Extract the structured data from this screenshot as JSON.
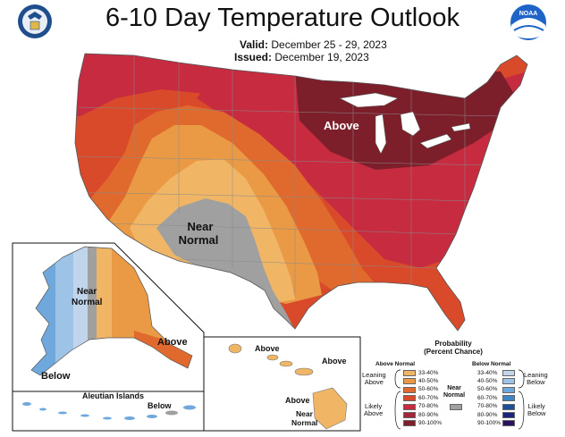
{
  "header": {
    "title": "6-10 Day Temperature Outlook",
    "valid_label": "Valid:",
    "valid_value": "December 25 - 29, 2023",
    "issued_label": "Issued:",
    "issued_value": "December 19, 2023"
  },
  "logos": {
    "left": "doc-seal-icon",
    "right_text": "NOAA"
  },
  "map_labels": {
    "conus_above": "Above",
    "conus_near": "Near",
    "conus_normal": "Normal",
    "alaska_near": "Near",
    "alaska_normal": "Normal",
    "alaska_above": "Above",
    "alaska_below": "Below",
    "aleutian_title": "Aleutian Islands",
    "aleutian_below": "Below",
    "hawaii_above_1": "Above",
    "hawaii_above_2": "Above",
    "hawaii_above_3": "Above",
    "hawaii_near": "Near",
    "hawaii_normal": "Normal"
  },
  "legend": {
    "title_1": "Probability",
    "title_2": "(Percent Chance)",
    "above_header": "Above Normal",
    "below_header": "Below Normal",
    "leaning_above": "Leaning\nAbove",
    "likely_above": "Likely\nAbove",
    "leaning_below": "Leaning\nBelow",
    "likely_below": "Likely\nBelow",
    "near_normal": "Near\nNormal",
    "above_bins": [
      {
        "label": "33-40%",
        "color": "#f1b566"
      },
      {
        "label": "40-50%",
        "color": "#ea9a45"
      },
      {
        "label": "50-60%",
        "color": "#e06a2e"
      },
      {
        "label": "60-70%",
        "color": "#d94a2a"
      },
      {
        "label": "70-80%",
        "color": "#c62b3f"
      },
      {
        "label": "80-90%",
        "color": "#a2263a"
      },
      {
        "label": "90-100%",
        "color": "#7d1f2a"
      }
    ],
    "below_bins": [
      {
        "label": "33-40%",
        "color": "#c0d5ec"
      },
      {
        "label": "40-50%",
        "color": "#9dc3e6"
      },
      {
        "label": "50-60%",
        "color": "#6fa8dc"
      },
      {
        "label": "60-70%",
        "color": "#3d85c6"
      },
      {
        "label": "70-80%",
        "color": "#1c4e9a"
      },
      {
        "label": "80-90%",
        "color": "#1a237e"
      },
      {
        "label": "90-100%",
        "color": "#2a1260"
      }
    ],
    "near_color": "#a0a0a0"
  }
}
